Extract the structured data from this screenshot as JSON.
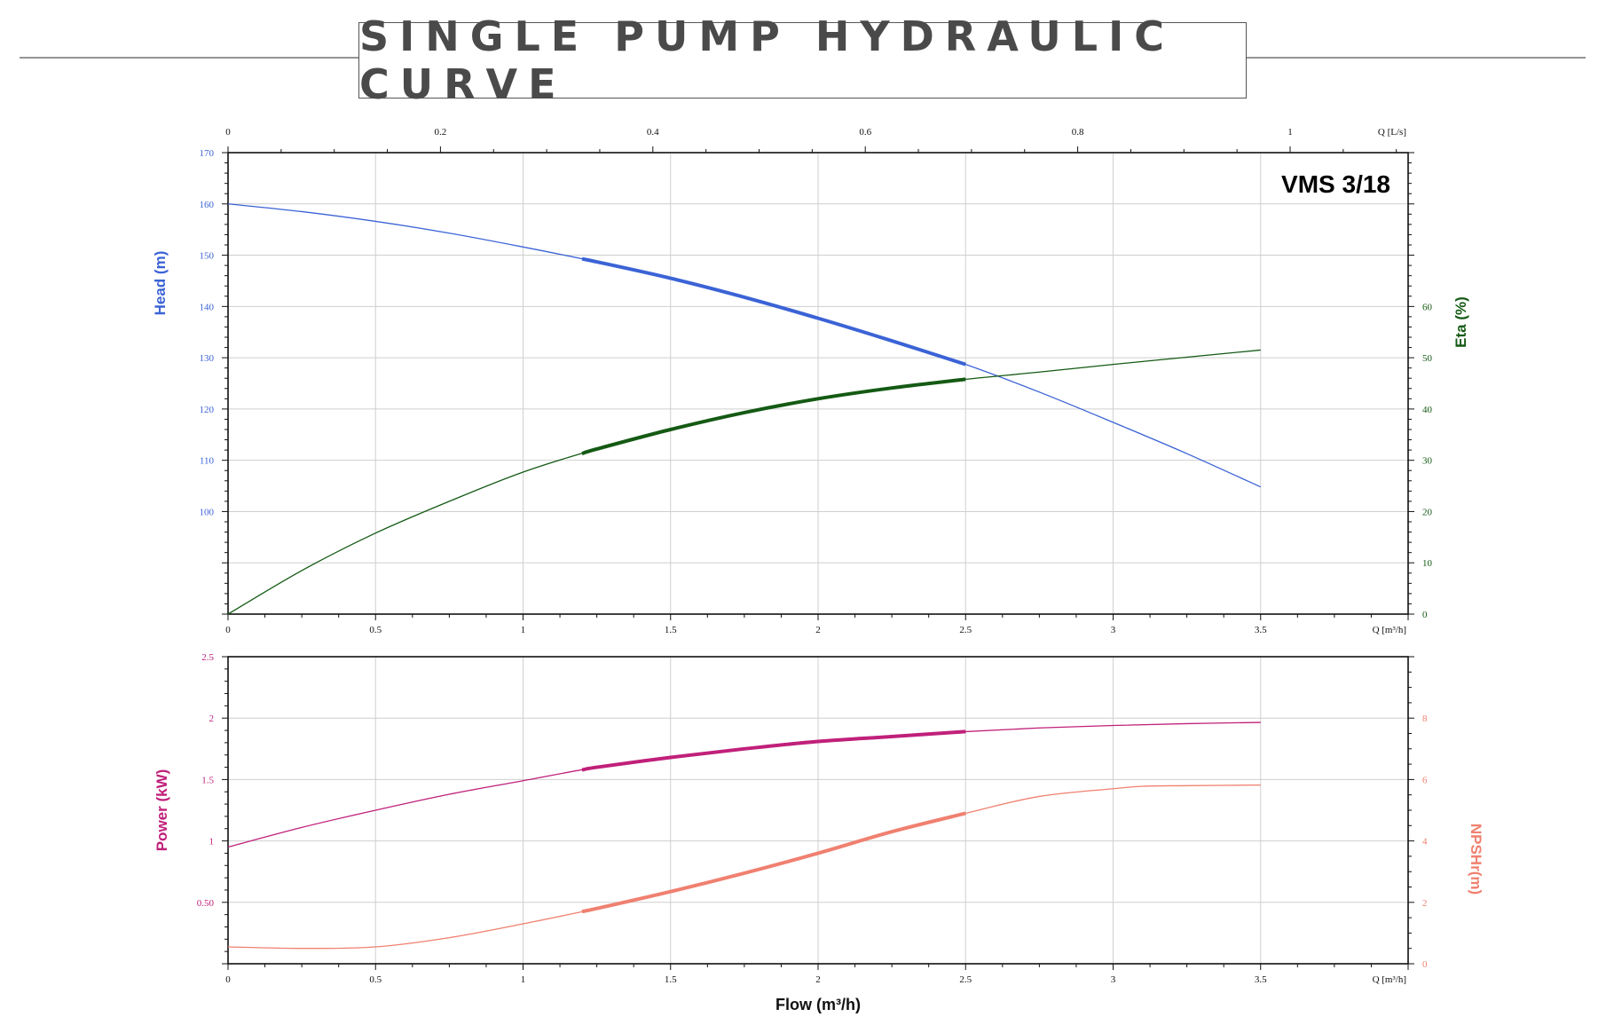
{
  "title": "SINGLE PUMP HYDRAULIC CURVE",
  "model_label": "VMS 3/18",
  "colors": {
    "head": "#3b63d6",
    "eta": "#145a14",
    "power": "#c0207a",
    "npsh": "#f08070",
    "grid": "#cfcfcf",
    "axis": "#111111"
  },
  "chart_data": [
    {
      "type": "line",
      "name": "head-eta-chart",
      "model": "VMS 3/18",
      "xlabel": "Q [m³/h]",
      "xlim": [
        0,
        4
      ],
      "x_ticks": [
        "0",
        "0.5",
        "1",
        "1.5",
        "2",
        "2.5",
        "3",
        "3.5"
      ],
      "x_tick_values": [
        0,
        0.5,
        1,
        1.5,
        2,
        2.5,
        3,
        3.5
      ],
      "top_axis": {
        "label": "Q [L/s]",
        "ticks": [
          "0",
          "0.2",
          "0.4",
          "0.6",
          "0.8",
          "1"
        ],
        "values": [
          0,
          0.2,
          0.4,
          0.6,
          0.8,
          1
        ]
      },
      "left_axis": {
        "label": "Head (m)",
        "lim": [
          80,
          170
        ],
        "ticks": [
          "100",
          "110",
          "120",
          "130",
          "140",
          "150",
          "160",
          "170"
        ],
        "values": [
          100,
          110,
          120,
          130,
          140,
          150,
          160,
          170
        ]
      },
      "right_axis": {
        "label": "Eta (%)",
        "lim": [
          0,
          90
        ],
        "ticks": [
          "0",
          "10",
          "20",
          "30",
          "40",
          "50",
          "60"
        ],
        "values": [
          0,
          10,
          20,
          30,
          40,
          50,
          60
        ]
      },
      "operating_range": [
        1.2,
        2.5
      ],
      "series": [
        {
          "name": "Head",
          "axis": "left",
          "x": [
            0,
            0.25,
            0.5,
            0.75,
            1.0,
            1.25,
            1.5,
            1.75,
            2.0,
            2.25,
            2.5,
            2.75,
            3.0,
            3.25,
            3.5
          ],
          "y": [
            160,
            158.5,
            156.6,
            154.3,
            151.6,
            148.7,
            145.5,
            141.8,
            137.7,
            133.3,
            128.7,
            123.3,
            117.4,
            111.3,
            104.8
          ]
        },
        {
          "name": "Eta",
          "axis": "right",
          "x": [
            0,
            0.25,
            0.5,
            0.75,
            1.0,
            1.25,
            1.5,
            1.75,
            2.0,
            2.25,
            2.5,
            2.75,
            3.0,
            3.25,
            3.5
          ],
          "y": [
            0,
            8.5,
            15.8,
            22.0,
            27.7,
            32.2,
            36.0,
            39.3,
            42.0,
            44.1,
            45.8,
            47.2,
            48.7,
            50.1,
            51.5
          ]
        }
      ]
    },
    {
      "type": "line",
      "name": "power-npsh-chart",
      "xlabel": "Flow (m³/h)",
      "x_axis_label": "Q [m³/h]",
      "xlim": [
        0,
        4
      ],
      "x_ticks": [
        "0",
        "0.5",
        "1",
        "1.5",
        "2",
        "2.5",
        "3",
        "3.5"
      ],
      "x_tick_values": [
        0,
        0.5,
        1,
        1.5,
        2,
        2.5,
        3,
        3.5
      ],
      "left_axis": {
        "label": "Power (kW)",
        "lim": [
          0,
          2.5
        ],
        "ticks": [
          "0.50",
          "1",
          "1.5",
          "2",
          "2.5"
        ],
        "values": [
          0.5,
          1,
          1.5,
          2,
          2.5
        ]
      },
      "right_axis": {
        "label": "NPSHr(m)",
        "lim": [
          0,
          10
        ],
        "ticks": [
          "0",
          "2",
          "4",
          "6",
          "8"
        ],
        "values": [
          0,
          2,
          4,
          6,
          8
        ]
      },
      "operating_range": [
        1.2,
        2.5
      ],
      "series": [
        {
          "name": "Power",
          "axis": "left",
          "x": [
            0,
            0.25,
            0.5,
            0.75,
            1.0,
            1.25,
            1.5,
            1.75,
            2.0,
            2.25,
            2.5,
            2.75,
            3.0,
            3.25,
            3.5
          ],
          "y": [
            0.95,
            1.11,
            1.25,
            1.38,
            1.49,
            1.6,
            1.68,
            1.75,
            1.81,
            1.85,
            1.89,
            1.92,
            1.94,
            1.955,
            1.965
          ]
        },
        {
          "name": "NPSHr",
          "axis": "right",
          "x": [
            0,
            0.25,
            0.5,
            0.75,
            1.0,
            1.25,
            1.5,
            1.75,
            2.0,
            2.25,
            2.5,
            2.75,
            3.0,
            3.1,
            3.25,
            3.5
          ],
          "y": [
            0.55,
            0.5,
            0.55,
            0.85,
            1.3,
            1.8,
            2.35,
            2.95,
            3.6,
            4.3,
            4.9,
            5.45,
            5.7,
            5.78,
            5.8,
            5.82
          ]
        }
      ]
    }
  ]
}
